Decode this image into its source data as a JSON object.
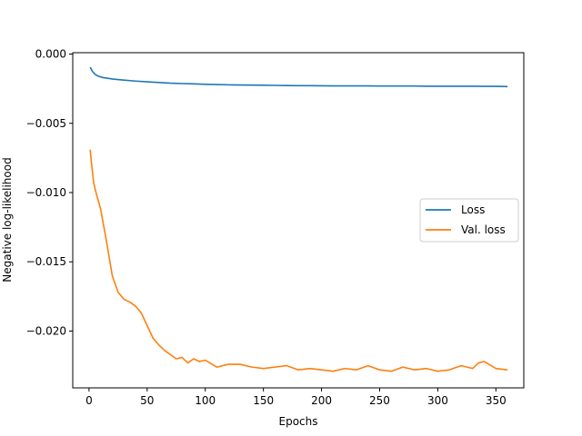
{
  "chart_data": {
    "type": "line",
    "title": "",
    "xlabel": "Epochs",
    "ylabel": "Negative log-likelihood",
    "xlim": [
      -14,
      374
    ],
    "ylim": [
      -0.0241,
      0.0001
    ],
    "xticks": [
      0,
      50,
      100,
      150,
      200,
      250,
      300,
      350
    ],
    "yticks": [
      0.0,
      -0.005,
      -0.01,
      -0.015,
      -0.02
    ],
    "xtick_labels": [
      "0",
      "50",
      "100",
      "150",
      "200",
      "250",
      "300",
      "350"
    ],
    "ytick_labels": [
      "0.000",
      "−0.005",
      "−0.010",
      "−0.015",
      "−0.020"
    ],
    "grid": false,
    "legend_position": "center-right",
    "series": [
      {
        "name": "Loss",
        "color": "#1f77b4",
        "x": [
          1,
          3,
          5,
          8,
          12,
          20,
          30,
          40,
          50,
          60,
          70,
          80,
          90,
          100,
          110,
          120,
          130,
          140,
          150,
          160,
          170,
          180,
          190,
          200,
          210,
          220,
          230,
          240,
          250,
          260,
          270,
          280,
          290,
          300,
          310,
          320,
          330,
          340,
          350,
          360
        ],
        "values": [
          -0.00095,
          -0.00125,
          -0.00145,
          -0.0016,
          -0.0017,
          -0.0018,
          -0.00188,
          -0.00195,
          -0.002,
          -0.00205,
          -0.0021,
          -0.00213,
          -0.00215,
          -0.00218,
          -0.0022,
          -0.00222,
          -0.00223,
          -0.00224,
          -0.00225,
          -0.00226,
          -0.00227,
          -0.00228,
          -0.00228,
          -0.00229,
          -0.0023,
          -0.0023,
          -0.0023,
          -0.0023,
          -0.00231,
          -0.00231,
          -0.00231,
          -0.00231,
          -0.00232,
          -0.00232,
          -0.00232,
          -0.00232,
          -0.00232,
          -0.00233,
          -0.00233,
          -0.00235
        ]
      },
      {
        "name": "Val. loss",
        "color": "#ff7f0e",
        "x": [
          1,
          2,
          4,
          6,
          10,
          15,
          20,
          25,
          30,
          35,
          40,
          45,
          50,
          55,
          60,
          65,
          70,
          75,
          80,
          85,
          90,
          95,
          100,
          110,
          120,
          130,
          140,
          150,
          160,
          170,
          180,
          190,
          200,
          210,
          220,
          230,
          240,
          250,
          260,
          270,
          280,
          290,
          300,
          310,
          320,
          330,
          335,
          340,
          350,
          360
        ],
        "values": [
          -0.0069,
          -0.0078,
          -0.0093,
          -0.01,
          -0.0112,
          -0.0135,
          -0.016,
          -0.0172,
          -0.0177,
          -0.0179,
          -0.0182,
          -0.0187,
          -0.0196,
          -0.0205,
          -0.021,
          -0.0214,
          -0.0217,
          -0.022,
          -0.0219,
          -0.0223,
          -0.022,
          -0.0222,
          -0.0221,
          -0.0226,
          -0.0224,
          -0.0224,
          -0.0226,
          -0.0227,
          -0.0226,
          -0.0225,
          -0.0228,
          -0.0227,
          -0.0228,
          -0.0229,
          -0.0227,
          -0.0228,
          -0.0225,
          -0.0228,
          -0.0229,
          -0.0226,
          -0.0228,
          -0.0227,
          -0.0229,
          -0.0228,
          -0.0225,
          -0.0227,
          -0.0223,
          -0.0222,
          -0.0227,
          -0.0228
        ]
      }
    ]
  }
}
